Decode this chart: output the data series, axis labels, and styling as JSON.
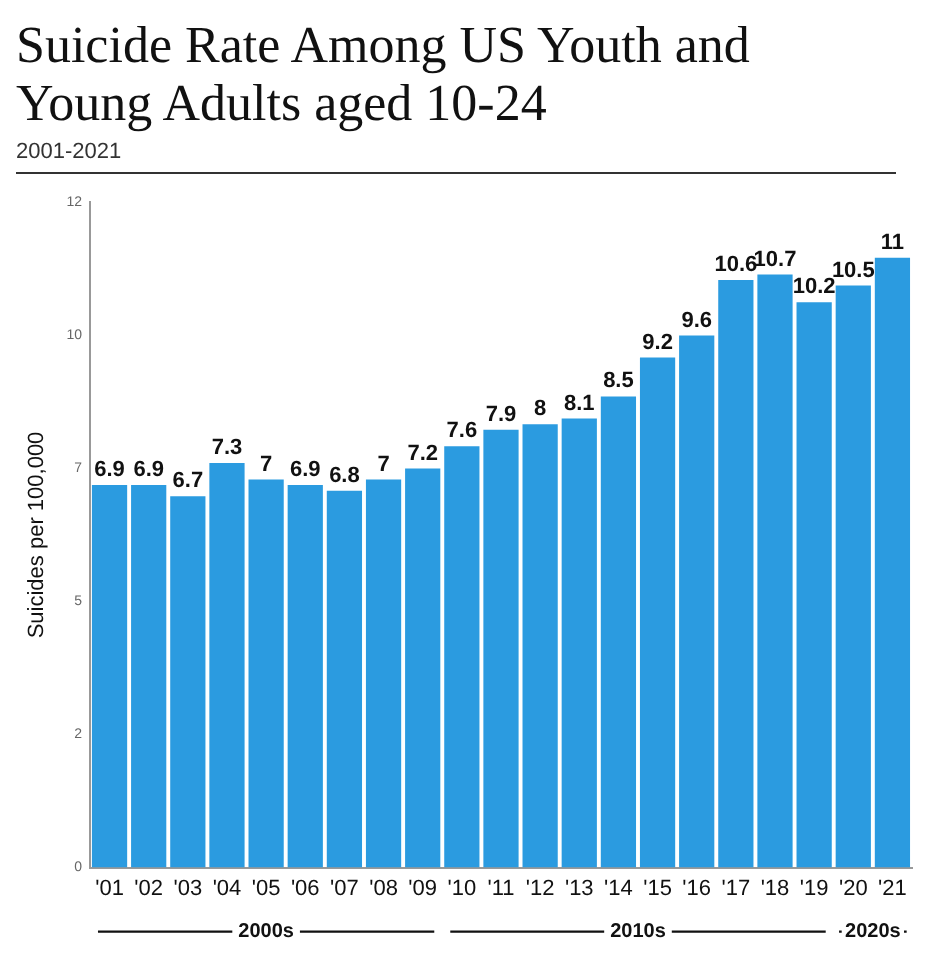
{
  "chart_data": {
    "type": "bar",
    "title": "Suicide Rate Among US Youth and Young Adults aged 10-24",
    "subtitle": "2001-2021",
    "ylabel": "Suicides per 100,000",
    "categories": [
      "'01",
      "'02",
      "'03",
      "'04",
      "'05",
      "'06",
      "'07",
      "'08",
      "'09",
      "'10",
      "'11",
      "'12",
      "'13",
      "'14",
      "'15",
      "'16",
      "'17",
      "'18",
      "'19",
      "'20",
      "'21"
    ],
    "values": [
      6.9,
      6.9,
      6.7,
      7.3,
      7,
      6.9,
      6.8,
      7,
      7.2,
      7.6,
      7.9,
      8,
      8.1,
      8.5,
      9.2,
      9.6,
      10.6,
      10.7,
      10.2,
      10.5,
      11
    ],
    "color": "#2b9be0",
    "data_labels": true,
    "grid": false,
    "legend": false,
    "ylim": [
      0,
      12
    ],
    "yticks": [
      0,
      {
        "value": 2.4,
        "label": "2"
      },
      {
        "value": 4.8,
        "label": "5"
      },
      {
        "value": 7.2,
        "label": "7"
      },
      {
        "value": 9.6,
        "label": "10"
      },
      12
    ],
    "annotations": [
      "2000s",
      "2010s",
      "2020s"
    ]
  }
}
